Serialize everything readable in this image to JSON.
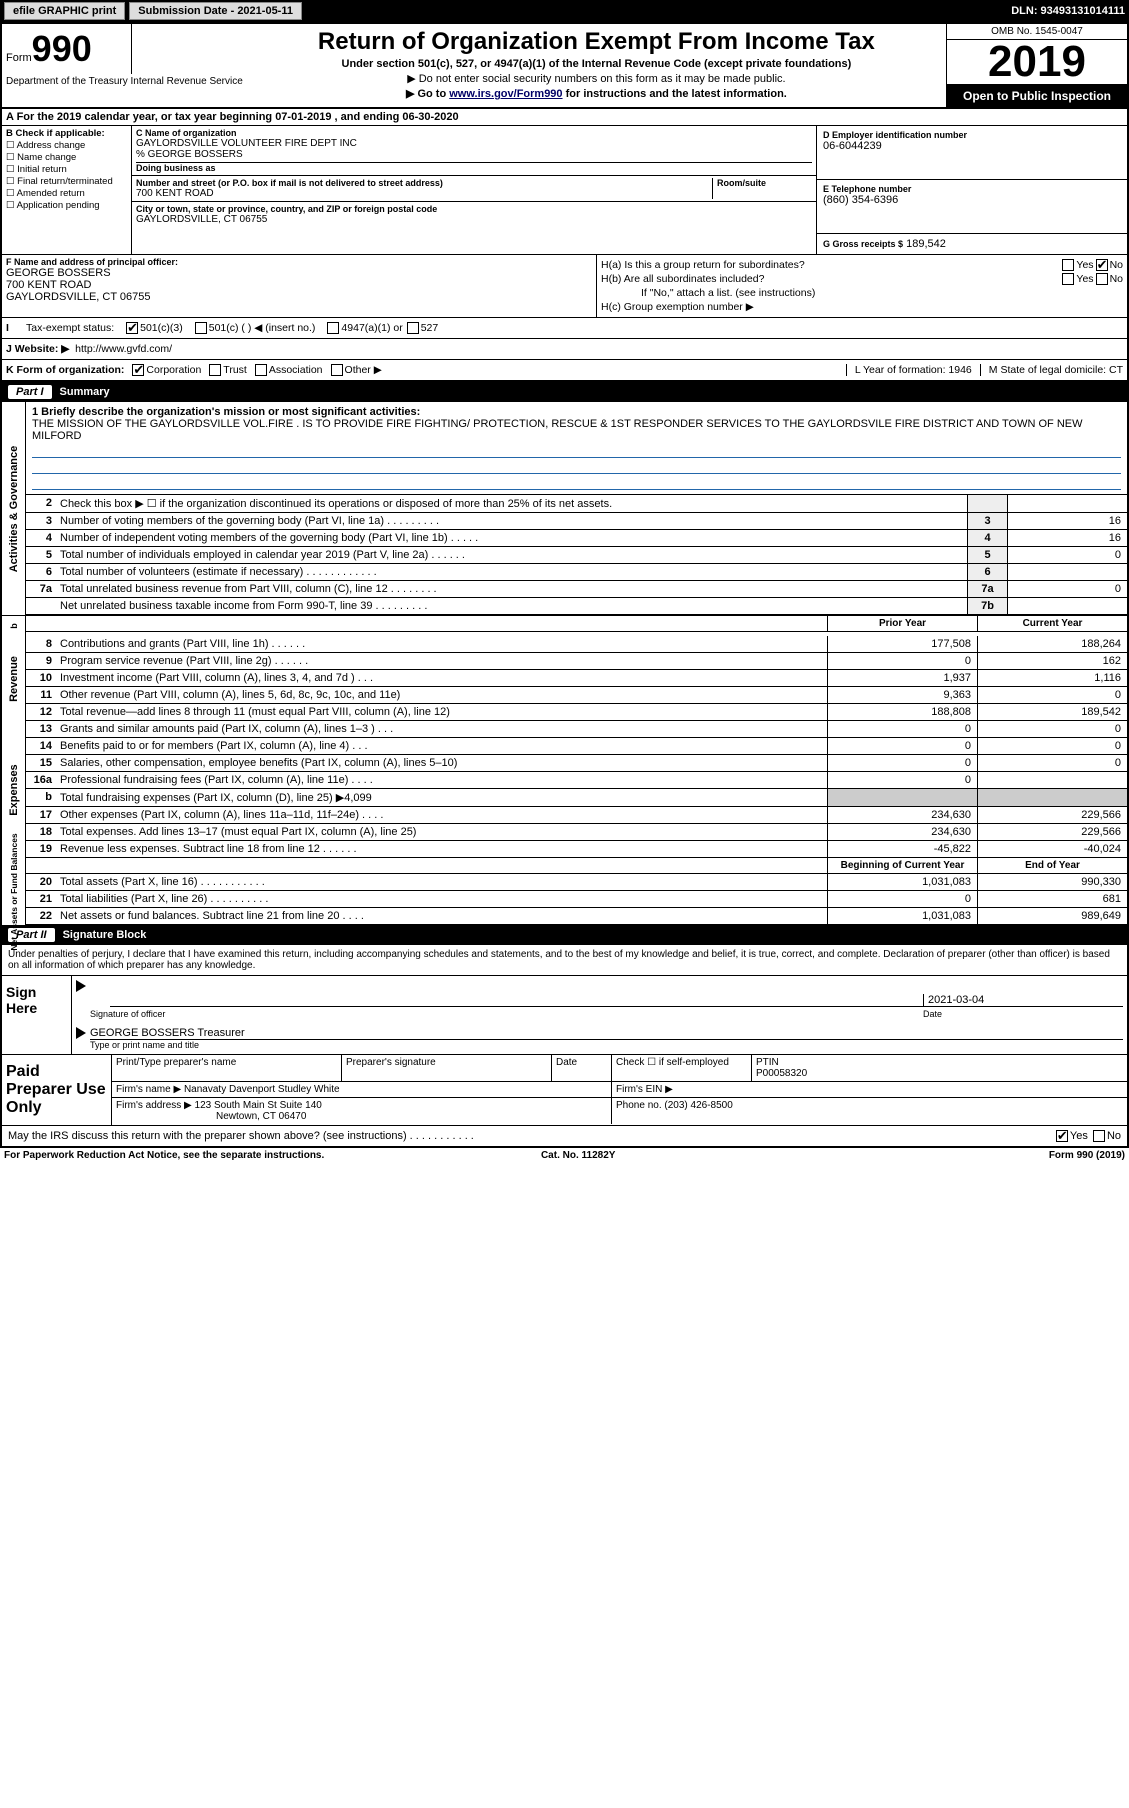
{
  "topbar": {
    "efile": "efile GRAPHIC print",
    "submission": "Submission Date - 2021-05-11",
    "dln": "DLN: 93493131014111"
  },
  "header": {
    "form_label": "Form",
    "form_num": "990",
    "title": "Return of Organization Exempt From Income Tax",
    "sub1": "Under section 501(c), 527, or 4947(a)(1) of the Internal Revenue Code (except private foundations)",
    "sub2": "▶ Do not enter social security numbers on this form as it may be made public.",
    "sub3_pre": "▶ Go to ",
    "sub3_link": "www.irs.gov/Form990",
    "sub3_post": " for instructions and the latest information.",
    "omb": "OMB No. 1545-0047",
    "year": "2019",
    "open": "Open to Public Inspection",
    "dept": "Department of the Treasury Internal Revenue Service"
  },
  "period": "A For the 2019 calendar year, or tax year beginning 07-01-2019     , and ending 06-30-2020",
  "boxB": {
    "label": "B Check if applicable:",
    "items": [
      "Address change",
      "Name change",
      "Initial return",
      "Final return/terminated",
      "Amended return",
      "Application pending"
    ]
  },
  "boxC": {
    "name_lbl": "C Name of organization",
    "name": "GAYLORDSVILLE VOLUNTEER FIRE DEPT INC",
    "care_of": "% GEORGE BOSSERS",
    "dba_lbl": "Doing business as",
    "addr_lbl": "Number and street (or P.O. box if mail is not delivered to street address)",
    "room_lbl": "Room/suite",
    "addr": "700 KENT ROAD",
    "city_lbl": "City or town, state or province, country, and ZIP or foreign postal code",
    "city": "GAYLORDSVILLE, CT  06755"
  },
  "boxD": {
    "lbl": "D Employer identification number",
    "val": "06-6044239"
  },
  "boxE": {
    "lbl": "E Telephone number",
    "val": "(860) 354-6396"
  },
  "boxG": {
    "lbl": "G Gross receipts $",
    "val": "189,542"
  },
  "boxF": {
    "lbl": "F  Name and address of principal officer:",
    "name": "GEORGE BOSSERS",
    "addr": "700 KENT ROAD",
    "city": "GAYLORDSVILLE, CT  06755"
  },
  "boxH": {
    "a": "H(a)  Is this a group return for subordinates?",
    "b": "H(b)  Are all subordinates included?",
    "bnote": "If \"No,\" attach a list. (see instructions)",
    "c": "H(c)  Group exemption number ▶",
    "yes": "Yes",
    "no": "No"
  },
  "rowI": {
    "lbl": "Tax-exempt status:",
    "o1": "501(c)(3)",
    "o2": "501(c) (  ) ◀ (insert no.)",
    "o3": "4947(a)(1) or",
    "o4": "527"
  },
  "rowJ": {
    "lbl": "J  Website: ▶",
    "val": "http://www.gvfd.com/"
  },
  "rowK": {
    "lbl": "K Form of organization:",
    "corp": "Corporation",
    "trust": "Trust",
    "assoc": "Association",
    "other": "Other ▶",
    "L": "L Year of formation: 1946",
    "M": "M State of legal domicile: CT"
  },
  "part1": {
    "num": "Part I",
    "title": "Summary"
  },
  "mission": {
    "lbl": "1  Briefly describe the organization's mission or most significant activities:",
    "val": "THE MISSION OF THE GAYLORDSVILLE VOL.FIRE . IS TO PROVIDE FIRE FIGHTING/ PROTECTION, RESCUE & 1ST RESPONDER SERVICES TO THE GAYLORDSVILE FIRE DISTRICT AND TOWN OF NEW MILFORD"
  },
  "lines_gov": [
    {
      "n": "2",
      "d": "Check this box ▶ ☐  if the organization discontinued its operations or disposed of more than 25% of its net assets.",
      "nb": "",
      "v": ""
    },
    {
      "n": "3",
      "d": "Number of voting members of the governing body (Part VI, line 1a)   .   .   .   .   .   .   .   .   .",
      "nb": "3",
      "v": "16"
    },
    {
      "n": "4",
      "d": "Number of independent voting members of the governing body (Part VI, line 1b)   .   .   .   .   .",
      "nb": "4",
      "v": "16"
    },
    {
      "n": "5",
      "d": "Total number of individuals employed in calendar year 2019 (Part V, line 2a)   .   .   .   .   .   .",
      "nb": "5",
      "v": "0"
    },
    {
      "n": "6",
      "d": "Total number of volunteers (estimate if necessary)    .   .   .   .   .   .   .   .   .   .   .   .",
      "nb": "6",
      "v": ""
    },
    {
      "n": "7a",
      "d": "Total unrelated business revenue from Part VIII, column (C), line 12   .   .   .   .   .   .   .   .",
      "nb": "7a",
      "v": "0"
    },
    {
      "n": "",
      "d": "Net unrelated business taxable income from Form 990-T, line 39    .   .   .   .   .   .   .   .   .",
      "nb": "7b",
      "v": ""
    }
  ],
  "col_hdrs": {
    "prior": "Prior Year",
    "current": "Current Year"
  },
  "revenue": [
    {
      "n": "8",
      "d": "Contributions and grants (Part VIII, line 1h)   .   .   .   .   .   .",
      "c1": "177,508",
      "c2": "188,264"
    },
    {
      "n": "9",
      "d": "Program service revenue (Part VIII, line 2g)   .   .   .   .   .   .",
      "c1": "0",
      "c2": "162"
    },
    {
      "n": "10",
      "d": "Investment income (Part VIII, column (A), lines 3, 4, and 7d )   .   .   .",
      "c1": "1,937",
      "c2": "1,116"
    },
    {
      "n": "11",
      "d": "Other revenue (Part VIII, column (A), lines 5, 6d, 8c, 9c, 10c, and 11e)",
      "c1": "9,363",
      "c2": "0"
    },
    {
      "n": "12",
      "d": "Total revenue—add lines 8 through 11 (must equal Part VIII, column (A), line 12)",
      "c1": "188,808",
      "c2": "189,542"
    }
  ],
  "expenses": [
    {
      "n": "13",
      "d": "Grants and similar amounts paid (Part IX, column (A), lines 1–3 )   .   .   .",
      "c1": "0",
      "c2": "0"
    },
    {
      "n": "14",
      "d": "Benefits paid to or for members (Part IX, column (A), line 4)   .   .   .",
      "c1": "0",
      "c2": "0"
    },
    {
      "n": "15",
      "d": "Salaries, other compensation, employee benefits (Part IX, column (A), lines 5–10)",
      "c1": "0",
      "c2": "0"
    },
    {
      "n": "16a",
      "d": "Professional fundraising fees (Part IX, column (A), line 11e)   .   .   .   .",
      "c1": "0",
      "c2": ""
    },
    {
      "n": "b",
      "d": "Total fundraising expenses (Part IX, column (D), line 25) ▶4,099",
      "c1": "shade",
      "c2": "shade"
    },
    {
      "n": "17",
      "d": "Other expenses (Part IX, column (A), lines 11a–11d, 11f–24e)   .   .   .   .",
      "c1": "234,630",
      "c2": "229,566"
    },
    {
      "n": "18",
      "d": "Total expenses. Add lines 13–17 (must equal Part IX, column (A), line 25)",
      "c1": "234,630",
      "c2": "229,566"
    },
    {
      "n": "19",
      "d": "Revenue less expenses. Subtract line 18 from line 12   .   .   .   .   .   .",
      "c1": "-45,822",
      "c2": "-40,024"
    }
  ],
  "net_hdrs": {
    "begin": "Beginning of Current Year",
    "end": "End of Year"
  },
  "netassets": [
    {
      "n": "20",
      "d": "Total assets (Part X, line 16)   .   .   .   .   .   .   .   .   .   .   .",
      "c1": "1,031,083",
      "c2": "990,330"
    },
    {
      "n": "21",
      "d": "Total liabilities (Part X, line 26)   .   .   .   .   .   .   .   .   .   .",
      "c1": "0",
      "c2": "681"
    },
    {
      "n": "22",
      "d": "Net assets or fund balances. Subtract line 21 from line 20   .   .   .   .",
      "c1": "1,031,083",
      "c2": "989,649"
    }
  ],
  "sidelabels": {
    "gov": "Activities & Governance",
    "rev": "Revenue",
    "exp": "Expenses",
    "net": "Net Assets or Fund Balances"
  },
  "part2": {
    "num": "Part II",
    "title": "Signature Block"
  },
  "declaration": "Under penalties of perjury, I declare that I have examined this return, including accompanying schedules and statements, and to the best of my knowledge and belief, it is true, correct, and complete. Declaration of preparer (other than officer) is based on all information of which preparer has any knowledge.",
  "sign": {
    "here": "Sign Here",
    "sig_lbl": "Signature of officer",
    "date_lbl": "Date",
    "date": "2021-03-04",
    "name": "GEORGE BOSSERS  Treasurer",
    "name_lbl": "Type or print name and title"
  },
  "prep": {
    "side": "Paid Preparer Use Only",
    "r1": {
      "name_lbl": "Print/Type preparer's name",
      "sig_lbl": "Preparer's signature",
      "date_lbl": "Date",
      "chk": "Check ☐  if self-employed",
      "ptin_lbl": "PTIN",
      "ptin": "P00058320"
    },
    "r2": {
      "lbl": "Firm's name    ▶",
      "val": "Nanavaty Davenport Studley White",
      "ein": "Firm's EIN ▶"
    },
    "r3": {
      "lbl": "Firm's address ▶",
      "val1": "123 South Main St Suite 140",
      "val2": "Newtown, CT  06470",
      "phone_lbl": "Phone no.",
      "phone": "(203) 426-8500"
    }
  },
  "discuss": {
    "q": "May the IRS discuss this return with the preparer shown above? (see instructions)    .   .   .   .   .   .   .   .   .   .   .",
    "yes": "Yes",
    "no": "No"
  },
  "footer": {
    "l": "For Paperwork Reduction Act Notice, see the separate instructions.",
    "c": "Cat. No. 11282Y",
    "r": "Form 990 (2019)"
  }
}
